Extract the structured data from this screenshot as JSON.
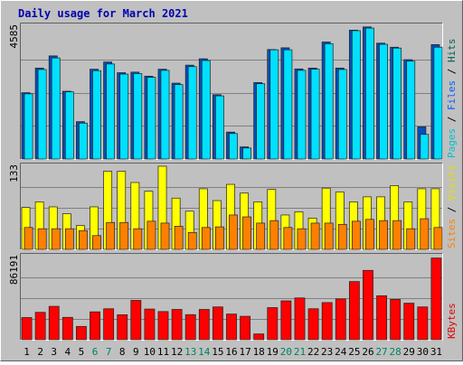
{
  "chart_data": [
    {
      "type": "bar",
      "title": "Daily usage for March 2021",
      "panel": "top",
      "categories": [
        "1",
        "2",
        "3",
        "4",
        "5",
        "6",
        "7",
        "8",
        "9",
        "10",
        "11",
        "12",
        "13",
        "14",
        "15",
        "16",
        "17",
        "18",
        "19",
        "20",
        "21",
        "22",
        "23",
        "24",
        "25",
        "26",
        "27",
        "28",
        "29",
        "30",
        "31"
      ],
      "weekend_days": [
        "6",
        "7",
        "13",
        "14",
        "20",
        "21",
        "27",
        "28"
      ],
      "ymax_label": "4585",
      "ylim": [
        0,
        4585
      ],
      "grid": true,
      "legend": "right, vertical",
      "legend_items": [
        {
          "text": "Pages",
          "color": "#00c0d0"
        },
        {
          "text": "Files",
          "color": "#0060ff"
        },
        {
          "text": "Hits",
          "color": "#006050"
        }
      ],
      "series": [
        {
          "name": "Hits",
          "color": "#0050c0",
          "values": [
            2290,
            3140,
            3560,
            2340,
            1290,
            3100,
            3350,
            2980,
            3000,
            2860,
            3100,
            2620,
            3240,
            3460,
            2220,
            930,
            420,
            2640,
            3780,
            3840,
            3110,
            3140,
            4040,
            3140,
            4450,
            4560,
            4000,
            3860,
            3430,
            1110,
            3950
          ]
        },
        {
          "name": "Pages",
          "color": "#00e0ff",
          "values": [
            2250,
            3090,
            3490,
            2320,
            1240,
            3050,
            3280,
            2930,
            2950,
            2820,
            3060,
            2570,
            3190,
            3400,
            2180,
            880,
            380,
            2600,
            3770,
            3770,
            3060,
            3100,
            3980,
            3090,
            4430,
            4520,
            3960,
            3830,
            3380,
            850,
            3860
          ]
        }
      ]
    },
    {
      "type": "bar",
      "panel": "middle",
      "ymax_label": "133",
      "ylim": [
        0,
        133
      ],
      "grid": true,
      "legend_items": [
        {
          "text": "Sites",
          "color": "#ff8000"
        },
        {
          "text": "Visits",
          "color": "#e0e000"
        }
      ],
      "series": [
        {
          "name": "Visits",
          "color": "#ffff00",
          "values": [
            67,
            76,
            68,
            57,
            38,
            68,
            125,
            125,
            107,
            93,
            133,
            82,
            61,
            97,
            78,
            104,
            90,
            76,
            96,
            55,
            60,
            50,
            98,
            92,
            76,
            84,
            84,
            102,
            76,
            97,
            97
          ]
        },
        {
          "name": "Sites",
          "color": "#ff8000",
          "values": [
            35,
            33,
            33,
            33,
            30,
            22,
            43,
            43,
            33,
            45,
            42,
            37,
            27,
            35,
            36,
            55,
            52,
            42,
            46,
            35,
            33,
            42,
            42,
            40,
            45,
            48,
            46,
            46,
            33,
            49,
            35
          ]
        }
      ]
    },
    {
      "type": "bar",
      "panel": "bottom",
      "ymax_label": "86191",
      "ylim": [
        0,
        86191
      ],
      "grid": true,
      "legend_items": [
        {
          "text": "KBytes",
          "color": "#e00000"
        }
      ],
      "series": [
        {
          "name": "KBytes",
          "color": "#ff0000",
          "values": [
            23000,
            28400,
            34600,
            23200,
            13800,
            28900,
            32100,
            25900,
            40800,
            31800,
            29200,
            31400,
            26000,
            31400,
            34000,
            26600,
            24300,
            6000,
            33300,
            40300,
            43300,
            32100,
            38500,
            42300,
            60300,
            71900,
            45600,
            41800,
            37900,
            34000,
            84700
          ]
        }
      ]
    }
  ]
}
